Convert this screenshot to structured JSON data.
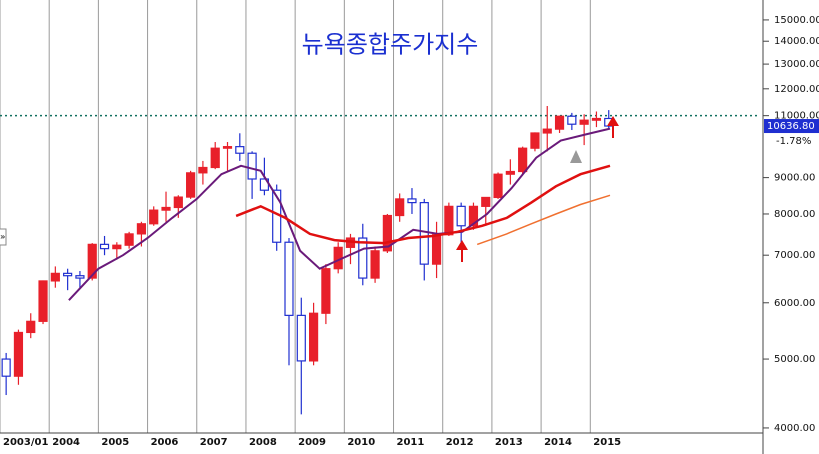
{
  "chart_data": {
    "type": "candlestick",
    "title": "뉴욕종합주가지수",
    "log_scale": true,
    "grid": true,
    "up_color": "#e8202a",
    "down_color": "#1f2fd0",
    "x": [
      2003.125,
      2003.375,
      2003.625,
      2003.875,
      2004.125,
      2004.375,
      2004.625,
      2004.875,
      2005.125,
      2005.375,
      2005.625,
      2005.875,
      2006.125,
      2006.375,
      2006.625,
      2006.875,
      2007.125,
      2007.375,
      2007.625,
      2007.875,
      2008.125,
      2008.375,
      2008.625,
      2008.875,
      2009.125,
      2009.375,
      2009.625,
      2009.875,
      2010.125,
      2010.375,
      2010.625,
      2010.875,
      2011.125,
      2011.375,
      2011.625,
      2011.875,
      2012.125,
      2012.375,
      2012.625,
      2012.875,
      2013.125,
      2013.375,
      2013.625,
      2013.875,
      2014.125,
      2014.375,
      2014.625,
      2014.875,
      2015.125,
      2015.375
    ],
    "open": [
      5000,
      4730,
      5450,
      5650,
      6440,
      6600,
      6550,
      6500,
      7250,
      7150,
      7230,
      7500,
      7750,
      8100,
      8170,
      8450,
      9140,
      9300,
      9900,
      9950,
      9740,
      8960,
      8640,
      7300,
      5760,
      4970,
      5800,
      6700,
      7180,
      7400,
      6500,
      7100,
      7960,
      8400,
      8300,
      6800,
      7480,
      8200,
      7700,
      8200,
      8440,
      9100,
      9180,
      9900,
      10400,
      10530,
      10980,
      10700,
      10840,
      10900
    ],
    "high": [
      5100,
      5500,
      5800,
      6450,
      6750,
      6700,
      6650,
      7280,
      7450,
      7300,
      7550,
      7800,
      8200,
      8600,
      8500,
      9200,
      9500,
      10100,
      10100,
      10390,
      9800,
      9600,
      8800,
      7400,
      6100,
      6000,
      6800,
      7300,
      7500,
      7750,
      7200,
      8000,
      8550,
      8700,
      8400,
      7800,
      8300,
      8300,
      8300,
      8400,
      9150,
      9550,
      9950,
      10420,
      11350,
      11000,
      11100,
      11050,
      11150,
      11200
    ],
    "low": [
      4450,
      4600,
      5350,
      5600,
      6300,
      6250,
      6300,
      6450,
      7000,
      6900,
      7150,
      7200,
      7700,
      7800,
      7900,
      8400,
      8800,
      9250,
      9200,
      9500,
      8400,
      8500,
      7100,
      4900,
      4180,
      4900,
      5600,
      6600,
      6800,
      6350,
      6400,
      7050,
      7800,
      8000,
      6450,
      6500,
      7450,
      7300,
      7600,
      7700,
      8400,
      8800,
      9100,
      9800,
      9800,
      10400,
      10500,
      10000,
      10600,
      10550
    ],
    "close": [
      4730,
      5450,
      5650,
      6440,
      6600,
      6550,
      6500,
      7250,
      7150,
      7230,
      7500,
      7750,
      8100,
      8170,
      8450,
      9140,
      9300,
      9900,
      9950,
      9740,
      8960,
      8640,
      7300,
      5760,
      4970,
      5800,
      6700,
      7180,
      7400,
      6500,
      7100,
      7960,
      8400,
      8300,
      6800,
      7480,
      8200,
      7700,
      8200,
      8440,
      9100,
      9180,
      9900,
      10400,
      10530,
      10980,
      10700,
      10840,
      10900,
      10637
    ],
    "series": [
      {
        "color": "#6a1a7a",
        "width": 2,
        "x": [
          2004.4,
          2005.0,
          2005.5,
          2006.0,
          2006.5,
          2007.0,
          2007.5,
          2007.9,
          2008.3,
          2008.7,
          2009.1,
          2009.5,
          2009.9,
          2010.4,
          2010.9,
          2011.4,
          2011.9,
          2012.4,
          2012.9,
          2013.4,
          2013.9,
          2014.4,
          2014.9,
          2015.4
        ],
        "values": [
          6050,
          6700,
          7000,
          7400,
          7900,
          8400,
          9100,
          9350,
          9200,
          8300,
          7100,
          6700,
          6900,
          7150,
          7200,
          7600,
          7500,
          7550,
          8000,
          8700,
          9600,
          10150,
          10350,
          10550
        ]
      },
      {
        "color": "#e01010",
        "width": 2.5,
        "x": [
          2007.8,
          2008.3,
          2008.8,
          2009.3,
          2009.8,
          2010.3,
          2010.8,
          2011.3,
          2011.8,
          2012.3,
          2012.8,
          2013.3,
          2013.8,
          2014.3,
          2014.8,
          2015.4
        ],
        "values": [
          7950,
          8200,
          7900,
          7500,
          7350,
          7300,
          7280,
          7400,
          7450,
          7550,
          7700,
          7900,
          8300,
          8750,
          9100,
          9350
        ]
      },
      {
        "color": "#f07030",
        "width": 1.5,
        "x": [
          2012.7,
          2013.3,
          2013.8,
          2014.3,
          2014.8,
          2015.4
        ],
        "values": [
          7250,
          7500,
          7750,
          8000,
          8250,
          8500
        ]
      }
    ],
    "reference_line": 11000,
    "last_value": 10636.8,
    "last_value_label": "10636.80",
    "change": -1.78,
    "change_label": "-1.78%",
    "xlim": [
      2003.0,
      2018.45
    ],
    "xticks": [
      {
        "value": 2003.0,
        "label": "2003/01"
      },
      2004,
      2005,
      2006,
      2007,
      2008,
      2009,
      2010,
      2011,
      2012,
      2013,
      2014,
      2015
    ],
    "ylim": [
      3935,
      16000
    ],
    "yticks": [
      {
        "value": 4000,
        "label": "4000.00"
      },
      {
        "value": 5000,
        "label": "5000.00"
      },
      {
        "value": 6000,
        "label": "6000.00"
      },
      {
        "value": 7000,
        "label": "7000.00"
      },
      {
        "value": 8000,
        "label": "8000.00"
      },
      {
        "value": 9000,
        "label": "9000.00"
      },
      {
        "value": 11000,
        "label": "11000.00"
      },
      {
        "value": 12000,
        "label": "12000.00"
      },
      {
        "value": 13000,
        "label": "13000.00"
      },
      {
        "value": 14000,
        "label": "14000.00"
      },
      {
        "value": 15000,
        "label": "15000.00"
      }
    ]
  }
}
